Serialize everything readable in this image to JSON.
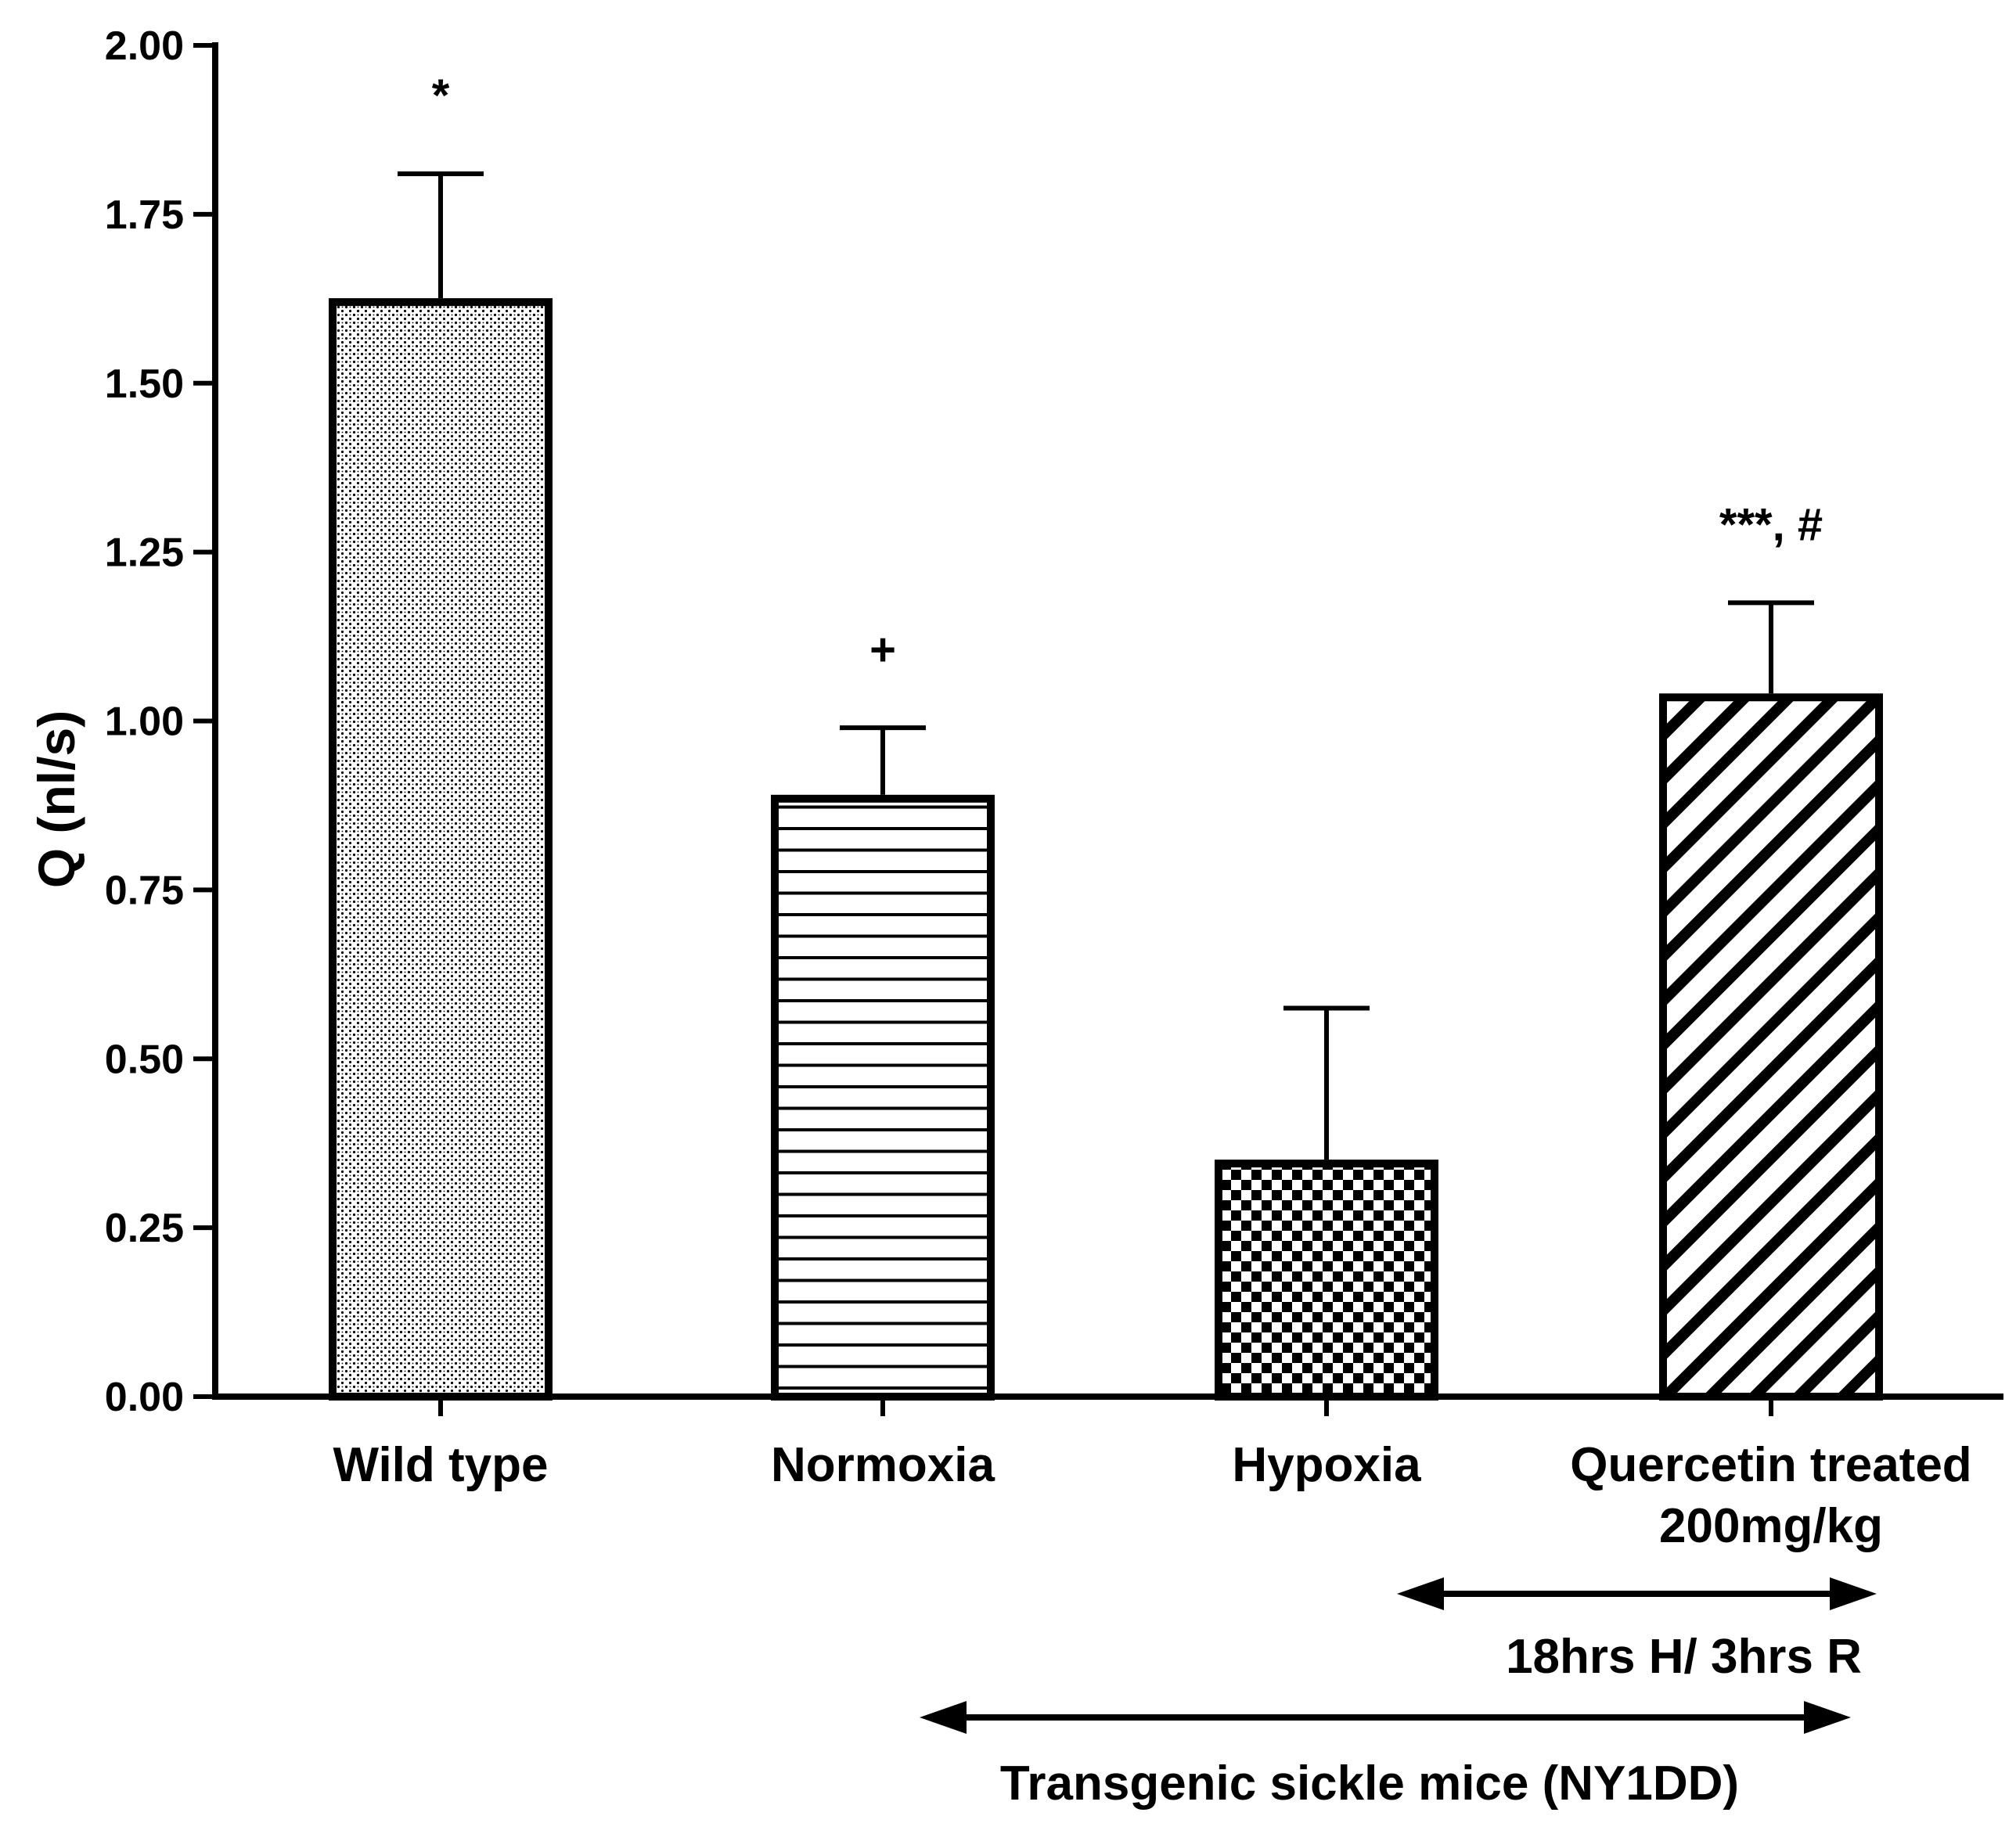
{
  "chart_data": {
    "type": "bar",
    "title": "",
    "xlabel": "",
    "ylabel": "Q  (nl/s)",
    "ylim": [
      0,
      2.0
    ],
    "yticks": [
      "0.00",
      "0.25",
      "0.50",
      "0.75",
      "1.00",
      "1.25",
      "1.50",
      "1.75",
      "2.00"
    ],
    "ytick_values": [
      0,
      0.25,
      0.5,
      0.75,
      1.0,
      1.25,
      1.5,
      1.75,
      2.0
    ],
    "categories": [
      [
        "Wild type"
      ],
      [
        "Normoxia"
      ],
      [
        "Hypoxia"
      ],
      [
        "Quercetin treated",
        "200mg/kg"
      ]
    ],
    "values": [
      1.62,
      0.885,
      0.345,
      1.035
    ],
    "error_upper": [
      1.81,
      0.99,
      0.575,
      1.175
    ],
    "patterns": [
      "dots",
      "horizontal-lines",
      "checkerboard",
      "diagonal-hatch"
    ],
    "annotations": [
      "*",
      "+",
      "",
      "***, #"
    ],
    "grid": false,
    "legend": "none",
    "ranges": [
      {
        "label": "18hrs H/ 3hrs R",
        "from_category": 2,
        "to_category": 3
      },
      {
        "label": "Transgenic sickle mice (NY1DD)",
        "from_category": 1,
        "to_category": 3
      }
    ],
    "colors": {
      "axis": "#000000",
      "bar_fill": "#ffffff",
      "pattern": "#000000"
    }
  }
}
